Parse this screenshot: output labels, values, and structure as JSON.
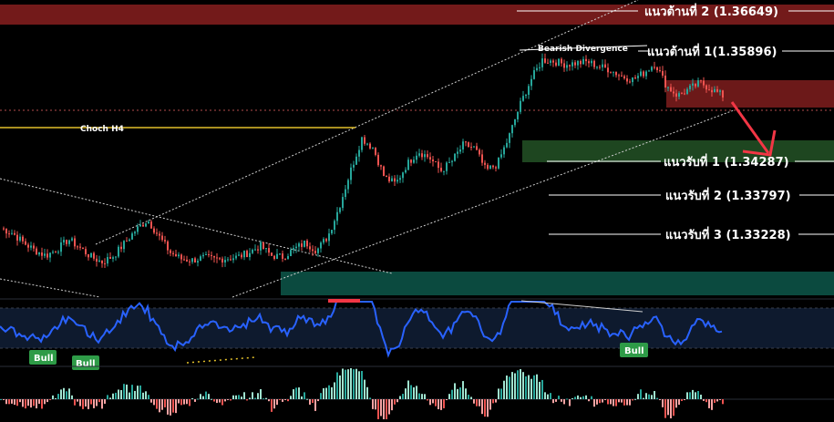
{
  "chart_data": {
    "type": "candlestick",
    "colors": {
      "bull": "#26a69a",
      "bear": "#ef5350",
      "resistance_zone": "#7f1d1d",
      "support_zone": "#1e4620",
      "demand_zone": "#0b4a3f",
      "rsi_line": "#2962ff",
      "choch_line": "#e3c02a",
      "arrow": "#f23645"
    },
    "levels": [
      {
        "label": "แนวต้านที่ 2 (1.36649)",
        "price": 1.36649,
        "type": "resistance"
      },
      {
        "label": "แนวต้านที่ 1(1.35896)",
        "price": 1.35896,
        "type": "resistance"
      },
      {
        "label": "แนวรับที่ 1 (1.34287)",
        "price": 1.34287,
        "type": "support"
      },
      {
        "label": "แนวรับที่ 2 (1.33797)",
        "price": 1.33797,
        "type": "support"
      },
      {
        "label": "แนวรับที่ 3 (1.33228)",
        "price": 1.33228,
        "type": "support"
      }
    ],
    "annotations": {
      "choch": "Choch H4",
      "divergence": "Bearish Divergence",
      "bull_1": "Bull",
      "bull_2": "Bull",
      "bull_3": "Bull"
    },
    "price_path": [
      1.3332,
      1.3325,
      1.331,
      1.3298,
      1.329,
      1.33,
      1.3315,
      1.3302,
      1.3288,
      1.328,
      1.329,
      1.331,
      1.333,
      1.3345,
      1.332,
      1.3295,
      1.3285,
      1.3283,
      1.3287,
      1.3284,
      1.3286,
      1.3288,
      1.3295,
      1.3305,
      1.329,
      1.3288,
      1.33,
      1.331,
      1.3298,
      1.332,
      1.3365,
      1.342,
      1.347,
      1.3455,
      1.341,
      1.34,
      1.343,
      1.345,
      1.344,
      1.342,
      1.3435,
      1.346,
      1.3455,
      1.342,
      1.343,
      1.347,
      1.352,
      1.356,
      1.359,
      1.3588,
      1.3583,
      1.3585,
      1.3587,
      1.358,
      1.3575,
      1.3565,
      1.356,
      1.357,
      1.3585,
      1.355,
      1.3535,
      1.3545,
      1.3555,
      1.3545,
      1.3535
    ]
  }
}
